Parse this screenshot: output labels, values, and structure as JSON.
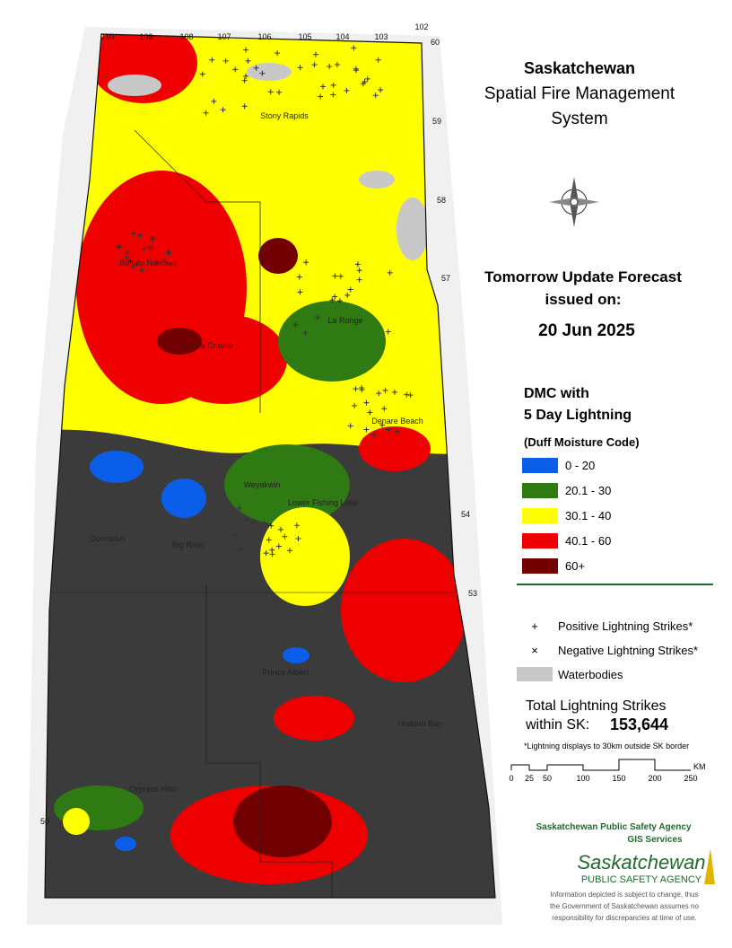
{
  "header": {
    "title": "Saskatchewan",
    "subtitle_lines": [
      "Spatial Fire Management",
      "System"
    ]
  },
  "forecast": {
    "lines": [
      "Tomorrow Update Forecast",
      "issued on:"
    ],
    "date": "20 Jun 2025"
  },
  "legend": {
    "title_lines": [
      "DMC with",
      "5 Day Lightning"
    ],
    "subtitle": "(Duff Moisture Code)",
    "classes": [
      {
        "label": "0 - 20",
        "color": "#0b5ee8"
      },
      {
        "label": "20.1 - 30",
        "color": "#2f7a12"
      },
      {
        "label": "30.1 - 40",
        "color": "#ffff00"
      },
      {
        "label": "40.1 - 60",
        "color": "#ee0000"
      },
      {
        "label": "60+",
        "color": "#730000"
      }
    ],
    "symbols": [
      {
        "symbol": "+",
        "label": "Positive Lightning Strikes*"
      },
      {
        "symbol": "×",
        "label": "Negative Lightning Strikes*"
      },
      {
        "label": "Waterbodies",
        "color": "#c8c8c8"
      }
    ]
  },
  "total": {
    "label_lines": [
      "Total Lightning Strikes",
      "within SK:"
    ],
    "value": "153,644",
    "note": "*Lightning displays to 30km outside SK border"
  },
  "scale": {
    "ticks": [
      "0",
      "25",
      "50",
      "100",
      "150",
      "200",
      "250"
    ],
    "unit": "KM"
  },
  "places": [
    "Stony Rapids",
    "Buffalo Narrows",
    "La Ronge",
    "Ile-a-la-Crosse",
    "Denare Beach",
    "Weyakwin",
    "Lower Fishing Lake",
    "Dorintosh",
    "Big River",
    "Prince Albert",
    "Hudson Bay",
    "Cypress Hills"
  ],
  "grid_labels": {
    "longitude": [
      "110",
      "109",
      "108",
      "107",
      "106",
      "105",
      "104",
      "103",
      "102"
    ],
    "latitude": [
      "60",
      "59",
      "58",
      "57",
      "54",
      "53",
      "50"
    ]
  },
  "credits": {
    "agency": "Saskatchewan Public Safety Agency",
    "unit": "GIS  Services",
    "logo_title": "Saskatchewan",
    "logo_subtitle": "PUBLIC SAFETY AGENCY",
    "disclaimer_lines": [
      "Information depicted is subject to change, thus",
      "the Government of Saskatchewan assumes no",
      "responsibility for discrepancies at time of use."
    ]
  }
}
